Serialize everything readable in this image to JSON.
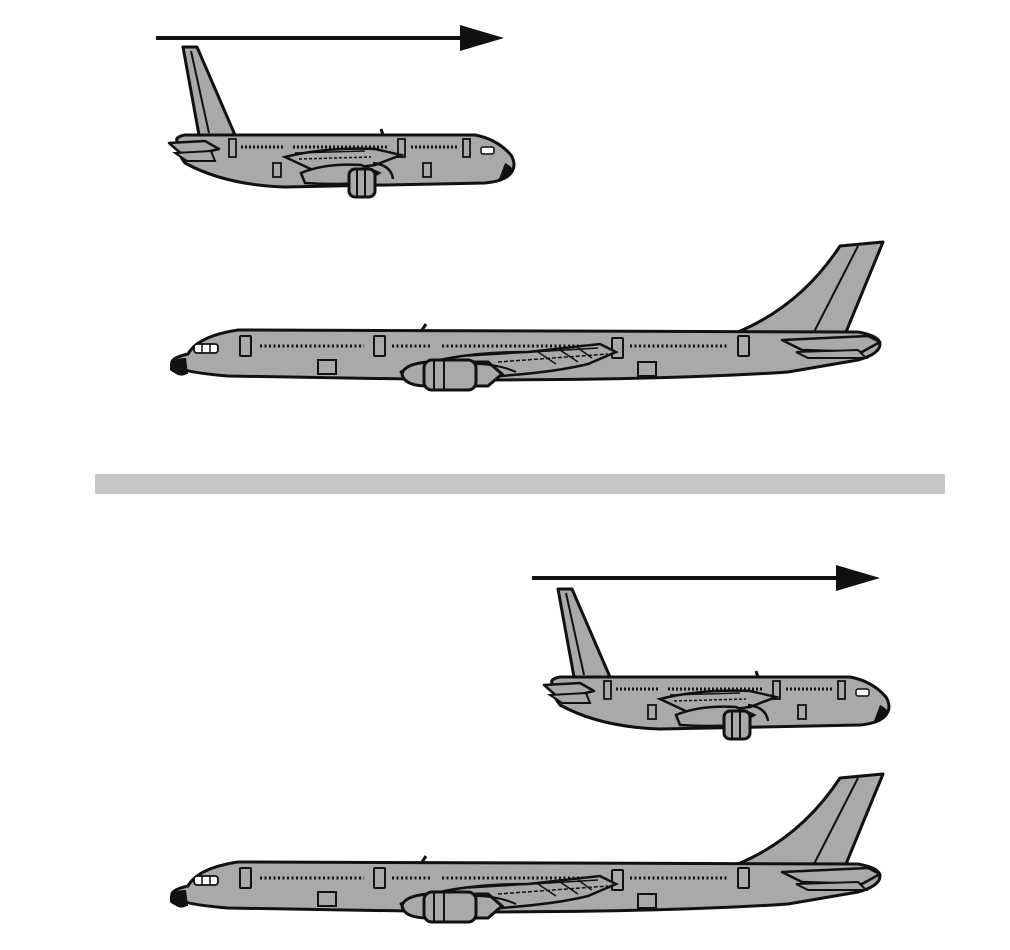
{
  "diagram": {
    "colors": {
      "background": "#ffffff",
      "fuselage": "#a9a9a9",
      "outline": "#111111",
      "divider": "#c6c6c6",
      "arrow": "#111111"
    },
    "icons": {
      "moving_aircraft": "airplane-facing-right-icon",
      "stationary_aircraft": "airplane-facing-left-icon",
      "motion_arrow": "arrow-right-icon"
    },
    "panels": [
      {
        "id": "top-panel",
        "moving_aircraft_direction": "right",
        "stationary_aircraft_direction": "left"
      },
      {
        "id": "bottom-panel",
        "moving_aircraft_direction": "right",
        "stationary_aircraft_direction": "left"
      }
    ]
  }
}
